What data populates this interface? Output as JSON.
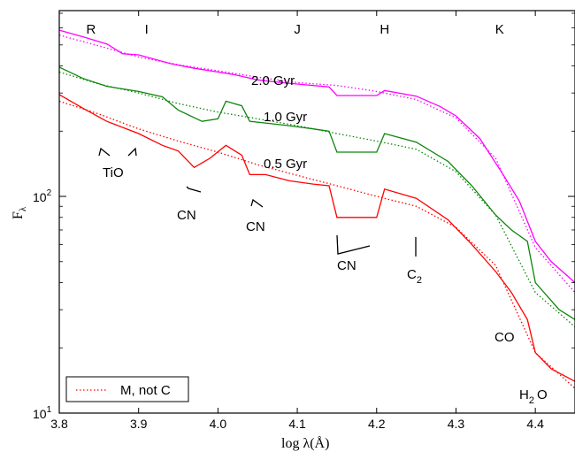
{
  "chart_data": {
    "type": "line",
    "xlabel": "log λ(Å)",
    "ylabel": "F",
    "ylabel_sub": "λ",
    "xlim": [
      3.8,
      4.45
    ],
    "ylim": [
      10,
      720
    ],
    "yscale": "log",
    "x_ticks": [
      {
        "v": 3.8,
        "label": "3.8"
      },
      {
        "v": 3.9,
        "label": "3.9"
      },
      {
        "v": 4.0,
        "label": "4.0"
      },
      {
        "v": 4.1,
        "label": "4.1"
      },
      {
        "v": 4.2,
        "label": "4.2"
      },
      {
        "v": 4.3,
        "label": "4.3"
      },
      {
        "v": 4.4,
        "label": "4.4"
      }
    ],
    "y_ticks": [
      {
        "v": 10,
        "base": "10",
        "exp": "1"
      },
      {
        "v": 100,
        "base": "10",
        "exp": "2"
      }
    ],
    "bands": [
      {
        "x": 3.84,
        "label": "R"
      },
      {
        "x": 3.91,
        "label": "I"
      },
      {
        "x": 4.1,
        "label": "J"
      },
      {
        "x": 4.21,
        "label": "H"
      },
      {
        "x": 4.355,
        "label": "K"
      }
    ],
    "series": [
      {
        "name": "2.0 Gyr",
        "color": "#ff00ff",
        "style": "solid",
        "points": [
          [
            3.8,
            585
          ],
          [
            3.83,
            545
          ],
          [
            3.86,
            505
          ],
          [
            3.88,
            455
          ],
          [
            3.9,
            450
          ],
          [
            3.94,
            410
          ],
          [
            3.97,
            390
          ],
          [
            4.0,
            375
          ],
          [
            4.02,
            365
          ],
          [
            4.05,
            345
          ],
          [
            4.08,
            335
          ],
          [
            4.1,
            330
          ],
          [
            4.14,
            320
          ],
          [
            4.15,
            292
          ],
          [
            4.2,
            292
          ],
          [
            4.21,
            308
          ],
          [
            4.25,
            290
          ],
          [
            4.28,
            260
          ],
          [
            4.3,
            235
          ],
          [
            4.33,
            185
          ],
          [
            4.36,
            125
          ],
          [
            4.38,
            95
          ],
          [
            4.4,
            62
          ],
          [
            4.42,
            50
          ],
          [
            4.45,
            40
          ]
        ]
      },
      {
        "name": "2.0 Gyr",
        "color": "#ff00ff",
        "style": "dotted",
        "points": [
          [
            3.8,
            555
          ],
          [
            3.85,
            495
          ],
          [
            3.9,
            440
          ],
          [
            3.95,
            405
          ],
          [
            4.0,
            380
          ],
          [
            4.05,
            355
          ],
          [
            4.1,
            335
          ],
          [
            4.15,
            325
          ],
          [
            4.2,
            305
          ],
          [
            4.25,
            280
          ],
          [
            4.3,
            230
          ],
          [
            4.35,
            150
          ],
          [
            4.4,
            58
          ],
          [
            4.45,
            36
          ]
        ]
      },
      {
        "name": "1.0 Gyr",
        "color": "#0a860a",
        "style": "solid",
        "points": [
          [
            3.8,
            395
          ],
          [
            3.83,
            350
          ],
          [
            3.86,
            322
          ],
          [
            3.9,
            305
          ],
          [
            3.93,
            288
          ],
          [
            3.95,
            250
          ],
          [
            3.98,
            222
          ],
          [
            4.0,
            228
          ],
          [
            4.01,
            275
          ],
          [
            4.03,
            262
          ],
          [
            4.04,
            222
          ],
          [
            4.06,
            218
          ],
          [
            4.09,
            212
          ],
          [
            4.12,
            205
          ],
          [
            4.14,
            200
          ],
          [
            4.15,
            160
          ],
          [
            4.2,
            160
          ],
          [
            4.21,
            195
          ],
          [
            4.25,
            178
          ],
          [
            4.29,
            145
          ],
          [
            4.32,
            112
          ],
          [
            4.35,
            82
          ],
          [
            4.37,
            70
          ],
          [
            4.39,
            62
          ],
          [
            4.4,
            40
          ],
          [
            4.43,
            30
          ],
          [
            4.45,
            27
          ]
        ]
      },
      {
        "name": "1.0 Gyr",
        "color": "#0a860a",
        "style": "dotted",
        "points": [
          [
            3.8,
            375
          ],
          [
            3.85,
            330
          ],
          [
            3.9,
            300
          ],
          [
            3.95,
            268
          ],
          [
            4.0,
            245
          ],
          [
            4.05,
            228
          ],
          [
            4.1,
            212
          ],
          [
            4.15,
            195
          ],
          [
            4.2,
            180
          ],
          [
            4.25,
            165
          ],
          [
            4.3,
            130
          ],
          [
            4.35,
            82
          ],
          [
            4.4,
            36
          ],
          [
            4.45,
            25
          ]
        ]
      },
      {
        "name": "0.5 Gyr",
        "color": "#ff0000",
        "style": "solid",
        "points": [
          [
            3.8,
            295
          ],
          [
            3.83,
            255
          ],
          [
            3.86,
            222
          ],
          [
            3.9,
            195
          ],
          [
            3.93,
            172
          ],
          [
            3.95,
            162
          ],
          [
            3.97,
            136
          ],
          [
            3.99,
            150
          ],
          [
            4.01,
            172
          ],
          [
            4.03,
            155
          ],
          [
            4.04,
            126
          ],
          [
            4.06,
            126
          ],
          [
            4.09,
            118
          ],
          [
            4.12,
            114
          ],
          [
            4.14,
            112
          ],
          [
            4.15,
            80
          ],
          [
            4.2,
            80
          ],
          [
            4.21,
            108
          ],
          [
            4.25,
            98
          ],
          [
            4.29,
            78
          ],
          [
            4.32,
            60
          ],
          [
            4.35,
            45
          ],
          [
            4.37,
            36
          ],
          [
            4.39,
            27
          ],
          [
            4.4,
            19
          ],
          [
            4.42,
            16
          ],
          [
            4.45,
            14
          ]
        ]
      },
      {
        "name": "M, not C",
        "color": "#ff0000",
        "style": "dotted",
        "points": [
          [
            3.8,
            275
          ],
          [
            3.85,
            240
          ],
          [
            3.9,
            205
          ],
          [
            3.95,
            180
          ],
          [
            4.0,
            160
          ],
          [
            4.05,
            140
          ],
          [
            4.1,
            125
          ],
          [
            4.15,
            112
          ],
          [
            4.2,
            100
          ],
          [
            4.25,
            90
          ],
          [
            4.3,
            72
          ],
          [
            4.35,
            48
          ],
          [
            4.4,
            19
          ],
          [
            4.45,
            13
          ]
        ]
      }
    ],
    "annotations": {
      "age_labels": [
        {
          "text": "2.0 Gyr",
          "x": 4.095,
          "y": 410
        },
        {
          "text": "1.0 Gyr",
          "x": 4.095,
          "y": 258
        },
        {
          "text": "0.5 Gyr",
          "x": 4.095,
          "y": 160
        }
      ],
      "features": [
        {
          "text": "TiO",
          "x": 3.877,
          "y": 132
        },
        {
          "text": "CN",
          "x": 3.965,
          "y": 92
        },
        {
          "text": "CN",
          "x": 4.043,
          "y": 83
        },
        {
          "text": "CN",
          "x": 4.165,
          "y": 52
        },
        {
          "text": "C",
          "sub": "2",
          "x": 4.253,
          "y": 47
        },
        {
          "text": "CO",
          "x": 4.365,
          "y": 31
        },
        {
          "text": "H",
          "sub": "2",
          "tail": "O",
          "x": 4.407,
          "y": 13
        }
      ]
    },
    "legend": {
      "position": "bottom-left",
      "label": "M, not C",
      "style": "dotted"
    },
    "grid": false
  }
}
